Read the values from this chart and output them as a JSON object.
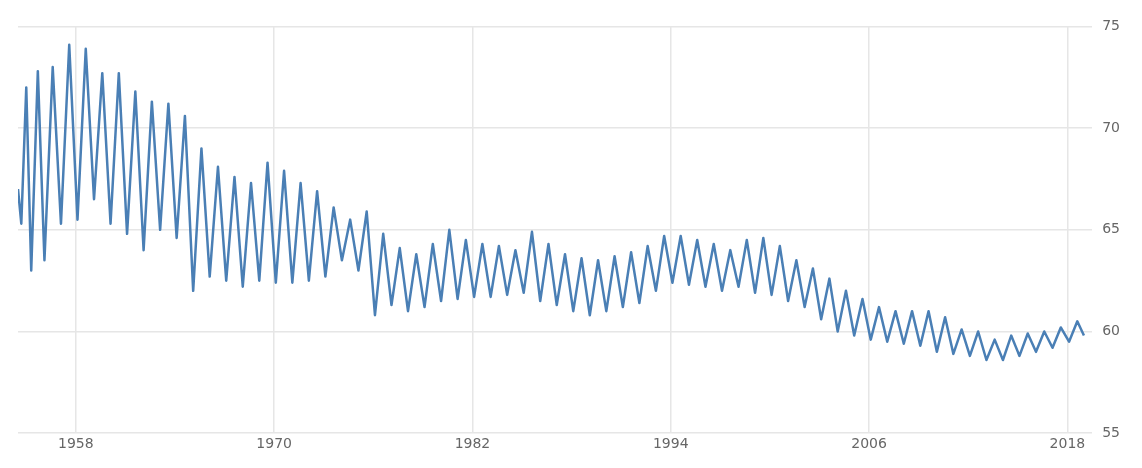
{
  "chart_data": {
    "type": "line",
    "color": "#4a7fb5",
    "x": [
      1954.5,
      1954.7,
      1955.0,
      1955.3,
      1955.7,
      1956.1,
      1956.6,
      1957.1,
      1957.6,
      1958.1,
      1958.6,
      1959.1,
      1959.6,
      1960.1,
      1960.6,
      1961.1,
      1961.6,
      1962.1,
      1962.6,
      1963.1,
      1963.6,
      1964.1,
      1964.6,
      1965.1,
      1965.6,
      1966.1,
      1966.6,
      1967.1,
      1967.6,
      1968.1,
      1968.6,
      1969.1,
      1969.6,
      1970.1,
      1970.6,
      1971.1,
      1971.6,
      1972.1,
      1972.6,
      1973.1,
      1973.6,
      1974.1,
      1974.6,
      1975.1,
      1975.6,
      1976.1,
      1976.6,
      1977.1,
      1977.6,
      1978.1,
      1978.6,
      1979.1,
      1979.6,
      1980.1,
      1980.6,
      1981.1,
      1981.6,
      1982.1,
      1982.6,
      1983.1,
      1983.6,
      1984.1,
      1984.6,
      1985.1,
      1985.6,
      1986.1,
      1986.6,
      1987.1,
      1987.6,
      1988.1,
      1988.6,
      1989.1,
      1989.6,
      1990.1,
      1990.6,
      1991.1,
      1991.6,
      1992.1,
      1992.6,
      1993.1,
      1993.6,
      1994.1,
      1994.6,
      1995.1,
      1995.6,
      1996.1,
      1996.6,
      1997.1,
      1997.6,
      1998.1,
      1998.6,
      1999.1,
      1999.6,
      2000.1,
      2000.6,
      2001.1,
      2001.6,
      2002.1,
      2002.6,
      2003.1,
      2003.6,
      2004.1,
      2004.6,
      2005.1,
      2005.6,
      2006.1,
      2006.6,
      2007.1,
      2007.6,
      2008.1,
      2008.6,
      2009.1,
      2009.6,
      2010.1,
      2010.6,
      2011.1,
      2011.6,
      2012.1,
      2012.6,
      2013.1,
      2013.6,
      2014.1,
      2014.6,
      2015.1,
      2015.6,
      2016.1,
      2016.6,
      2017.1,
      2017.6,
      2018.1,
      2018.6,
      2019.0
    ],
    "values": [
      67,
      65.3,
      72,
      63,
      72.8,
      63.5,
      73,
      65.3,
      74.1,
      65.5,
      73.9,
      66.5,
      72.7,
      65.3,
      72.7,
      64.8,
      71.8,
      64,
      71.3,
      65,
      71.2,
      64.6,
      70.6,
      62,
      69,
      62.7,
      68.1,
      62.5,
      67.6,
      62.2,
      67.3,
      62.5,
      68.3,
      62.4,
      67.9,
      62.4,
      67.3,
      62.5,
      66.9,
      62.7,
      66.1,
      63.5,
      65.5,
      63,
      65.9,
      60.8,
      64.8,
      61.3,
      64.1,
      61,
      63.8,
      61.2,
      64.3,
      61.5,
      65,
      61.6,
      64.5,
      61.7,
      64.3,
      61.7,
      64.2,
      61.8,
      64,
      61.9,
      64.9,
      61.5,
      64.3,
      61.3,
      63.8,
      61,
      63.6,
      60.8,
      63.5,
      61,
      63.7,
      61.2,
      63.9,
      61.4,
      64.2,
      62,
      64.7,
      62.4,
      64.7,
      62.3,
      64.5,
      62.2,
      64.3,
      62,
      64,
      62.2,
      64.5,
      61.9,
      64.6,
      61.8,
      64.2,
      61.5,
      63.5,
      61.2,
      63.1,
      60.6,
      62.6,
      60,
      62,
      59.8,
      61.6,
      59.6,
      61.2,
      59.5,
      61,
      59.4,
      61,
      59.3,
      61,
      59,
      60.7,
      58.9,
      60.1,
      58.8,
      60,
      58.6,
      59.6,
      58.6,
      59.8,
      58.8,
      59.9,
      59,
      60,
      59.2,
      60.2,
      59.5,
      60.5,
      59.8
    ],
    "xlim": [
      1954.5,
      2019.5
    ],
    "xticks": [
      1958,
      1970,
      1982,
      1994,
      2006,
      2018
    ],
    "ylim": [
      55,
      75
    ],
    "yticks": [
      55,
      60,
      65,
      70,
      75
    ],
    "grid": true,
    "legend": false,
    "marker": "none",
    "line_style": "solid"
  }
}
